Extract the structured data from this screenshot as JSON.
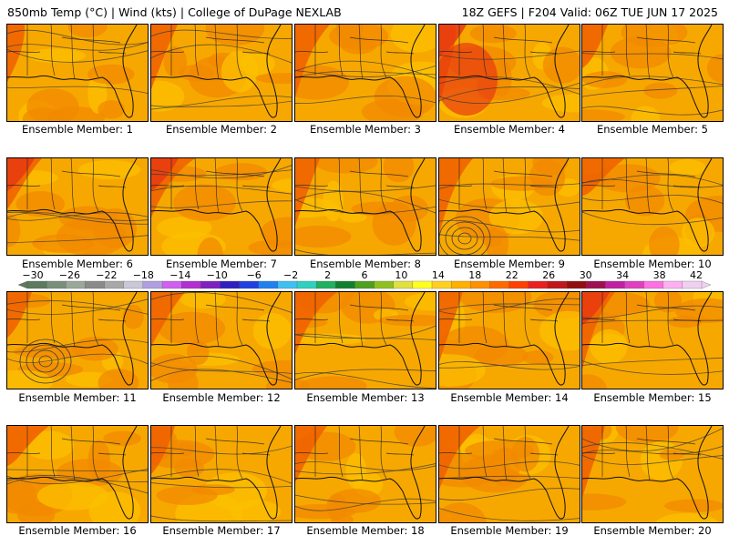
{
  "header": {
    "left": "850mb Temp (°C) | Wind (kts) | College of DuPage NEXLAB",
    "right": "18Z GEFS | F204 Valid: 06Z TUE JUN 17 2025"
  },
  "members": [
    "Ensemble Member: 1",
    "Ensemble Member: 2",
    "Ensemble Member: 3",
    "Ensemble Member: 4",
    "Ensemble Member: 5",
    "Ensemble Member: 6",
    "Ensemble Member: 7",
    "Ensemble Member: 8",
    "Ensemble Member: 9",
    "Ensemble Member: 10",
    "Ensemble Member: 11",
    "Ensemble Member: 12",
    "Ensemble Member: 13",
    "Ensemble Member: 14",
    "Ensemble Member: 15",
    "Ensemble Member: 16",
    "Ensemble Member: 17",
    "Ensemble Member: 18",
    "Ensemble Member: 19",
    "Ensemble Member: 20"
  ],
  "colorbar": {
    "tick_labels": [
      "−30",
      "−26",
      "−22",
      "−18",
      "−14",
      "−10",
      "−6",
      "−2",
      "2",
      "6",
      "10",
      "14",
      "18",
      "22",
      "26",
      "30",
      "34",
      "38",
      "42"
    ],
    "colors": [
      "#5c7a5c",
      "#7a8f7a",
      "#9aa89a",
      "#8a8a8a",
      "#a8a8a8",
      "#c8c8d8",
      "#b0a0e0",
      "#d060f0",
      "#b030d0",
      "#8020c0",
      "#3020c0",
      "#2040e0",
      "#2080f0",
      "#40c0f0",
      "#30d0c0",
      "#20b060",
      "#108030",
      "#50a020",
      "#90c020",
      "#e0e040",
      "#ffff20",
      "#ffd020",
      "#ffb000",
      "#ff9000",
      "#ff6a00",
      "#ff4000",
      "#e82020",
      "#c01818",
      "#901010",
      "#a01050",
      "#c020a0",
      "#e040c0",
      "#ff70e0",
      "#ffb0f0",
      "#f0d0f0"
    ]
  },
  "palette": {
    "base": "#f7a800",
    "warm": "#f28a00",
    "hot": "#ef6300",
    "hotter": "#e83a10",
    "cool": "#fcc000",
    "contour": "#3a3a3a"
  }
}
